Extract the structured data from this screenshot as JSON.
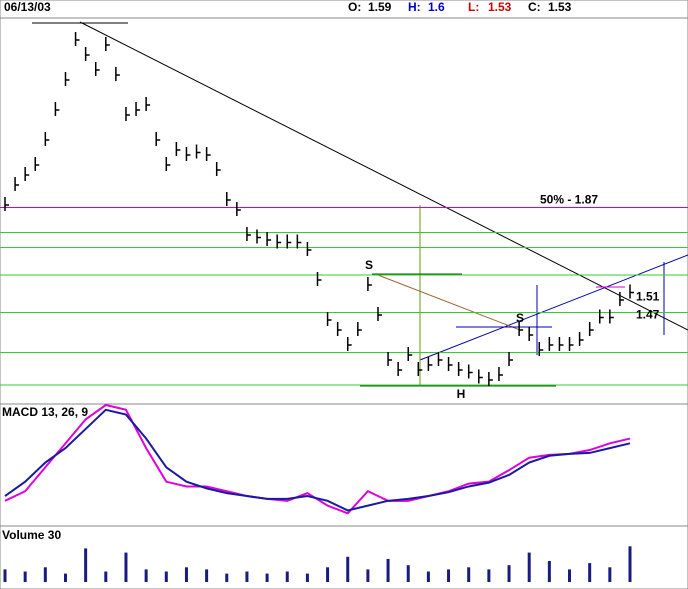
{
  "header": {
    "date": "06/13/03",
    "quotes": [
      {
        "label": "O:",
        "value": 1.59,
        "color": "#000000"
      },
      {
        "label": "H:",
        "value": 1.6,
        "color": "#0000cc"
      },
      {
        "label": "L:",
        "value": 1.53,
        "color": "#cc0000"
      },
      {
        "label": "C:",
        "value": 1.53,
        "color": "#000000"
      }
    ]
  },
  "chart_data": [
    {
      "type": "price",
      "color": "#000000",
      "values": [
        1.88,
        1.96,
        2.0,
        2.04,
        2.14,
        2.26,
        2.38,
        2.54,
        2.48,
        2.42,
        2.52,
        2.4,
        2.24,
        2.26,
        2.28,
        2.14,
        2.04,
        2.1,
        2.08,
        2.09,
        2.08,
        2.02,
        1.9,
        1.86,
        1.76,
        1.75,
        1.74,
        1.73,
        1.73,
        1.73,
        1.7,
        1.58,
        1.42,
        1.38,
        1.32,
        1.38,
        1.56,
        1.44,
        1.26,
        1.22,
        1.28,
        1.22,
        1.24,
        1.26,
        1.24,
        1.22,
        1.21,
        1.19,
        1.18,
        1.2,
        1.26,
        1.38,
        1.36,
        1.3,
        1.32,
        1.32,
        1.32,
        1.34,
        1.38,
        1.43,
        1.43,
        1.5,
        1.53
      ],
      "ylim": [
        1.14,
        2.62
      ],
      "levels": [
        1.77,
        1.71,
        1.6,
        1.45,
        1.29,
        1.16
      ],
      "level_color": "#33cc33",
      "half_level": {
        "value": 1.87,
        "label": "50% - 1.87"
      },
      "half_color": "#cc00cc",
      "price_labels": [
        1.51,
        1.47
      ],
      "annotations": [
        "S",
        "S",
        "H"
      ]
    },
    {
      "type": "line",
      "title": "MACD 13, 26, 9",
      "ylim": [
        -1.3,
        1.1
      ],
      "series": [
        {
          "color": "#dd00dd",
          "values": [
            -0.9,
            -0.7,
            -0.2,
            0.3,
            0.8,
            1.1,
            1.0,
            0.2,
            -0.5,
            -0.6,
            -0.6,
            -0.7,
            -0.8,
            -0.86,
            -0.9,
            -0.74,
            -1.0,
            -1.16,
            -0.7,
            -0.9,
            -0.9,
            -0.8,
            -0.7,
            -0.54,
            -0.5,
            -0.26,
            0,
            0.06,
            0.08,
            0.16,
            0.3,
            0.4
          ]
        },
        {
          "color": "#1a1aa0",
          "values": [
            -0.8,
            -0.5,
            -0.1,
            0.2,
            0.6,
            1.0,
            0.9,
            0.4,
            -0.2,
            -0.5,
            -0.64,
            -0.74,
            -0.8,
            -0.86,
            -0.86,
            -0.8,
            -0.9,
            -1.1,
            -1.0,
            -0.9,
            -0.86,
            -0.8,
            -0.72,
            -0.6,
            -0.52,
            -0.36,
            -0.1,
            0.04,
            0.08,
            0.1,
            0.2,
            0.3
          ]
        }
      ]
    },
    {
      "type": "bar",
      "title": "Volume 30",
      "color": "#1a1a80",
      "ylim": [
        0,
        100
      ],
      "values": [
        30,
        25,
        35,
        20,
        80,
        25,
        70,
        30,
        25,
        35,
        30,
        20,
        25,
        20,
        25,
        20,
        35,
        60,
        30,
        55,
        40,
        25,
        30,
        35,
        30,
        40,
        70,
        50,
        30,
        45,
        35,
        85
      ]
    }
  ]
}
